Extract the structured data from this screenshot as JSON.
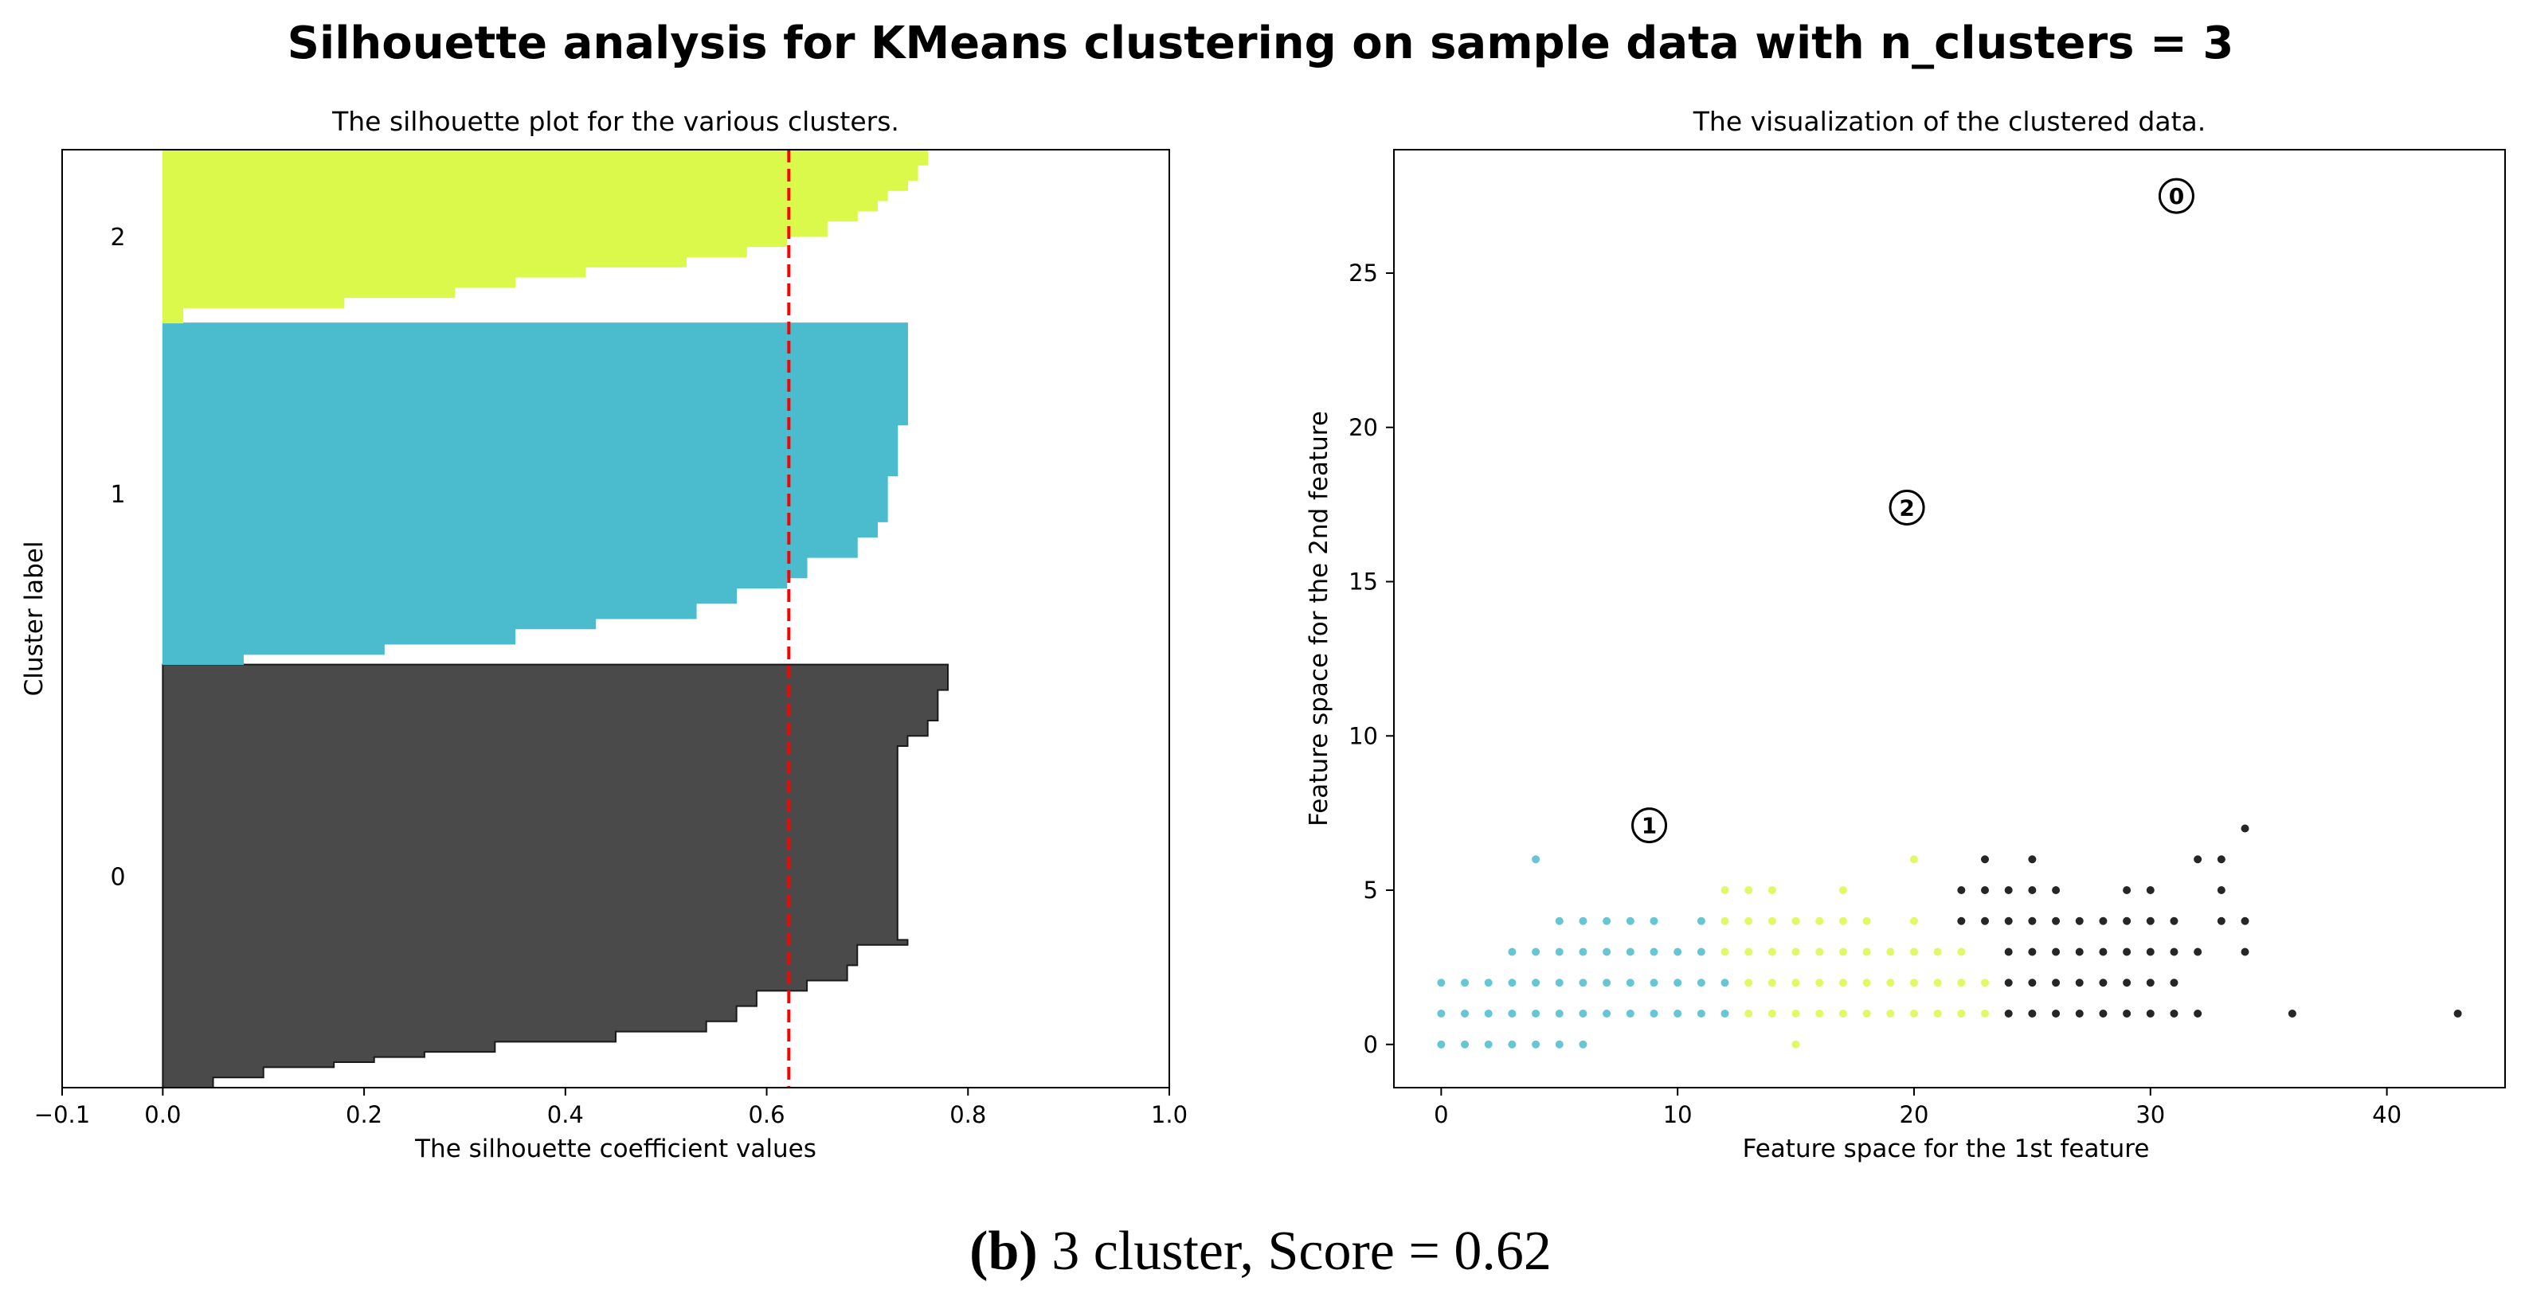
{
  "figure": {
    "suptitle": "Silhouette analysis for KMeans clustering on sample data with n_clusters = 3",
    "caption_label": "(b)",
    "caption_text": " 3 cluster, Score = 0.62",
    "colors": {
      "cluster_0": "#4a4a4a",
      "cluster_1": "#4bbccd",
      "cluster_2": "#dbf94a",
      "avg_line": "#ff0000"
    }
  },
  "chart_data": [
    {
      "type": "area",
      "orientation": "horizontal",
      "title": "The silhouette plot for the various clusters.",
      "xlabel": "The silhouette coefficient values",
      "ylabel": "Cluster label",
      "xlim": [
        -0.1,
        1.0
      ],
      "xticks": [
        -0.1,
        0.0,
        0.2,
        0.4,
        0.6,
        0.8,
        1.0
      ],
      "xtick_labels": [
        "−0.1",
        "0.0",
        "0.2",
        "0.4",
        "0.6",
        "0.8",
        "1.0"
      ],
      "ylim": [
        0,
        184
      ],
      "average_score": 0.622,
      "clusters": [
        {
          "label": "0",
          "y_range": [
            0,
            83
          ],
          "color": "#4a4a4a",
          "profile": [
            [
              0,
              0.05
            ],
            [
              2,
              0.1
            ],
            [
              4,
              0.17
            ],
            [
              5,
              0.21
            ],
            [
              6,
              0.26
            ],
            [
              7,
              0.33
            ],
            [
              9,
              0.45
            ],
            [
              11,
              0.54
            ],
            [
              13,
              0.57
            ],
            [
              16,
              0.59
            ],
            [
              19,
              0.64
            ],
            [
              21,
              0.68
            ],
            [
              24,
              0.69
            ],
            [
              28,
              0.74
            ],
            [
              29,
              0.73
            ],
            [
              54,
              0.73
            ],
            [
              67,
              0.74
            ],
            [
              69,
              0.76
            ],
            [
              72,
              0.77
            ],
            [
              75,
              0.77
            ],
            [
              78,
              0.78
            ],
            [
              83,
              0.78
            ]
          ]
        },
        {
          "label": "1",
          "y_range": [
            83,
            150
          ],
          "color": "#4bbccd",
          "profile": [
            [
              83,
              0.08
            ],
            [
              85,
              0.22
            ],
            [
              87,
              0.35
            ],
            [
              90,
              0.43
            ],
            [
              92,
              0.53
            ],
            [
              95,
              0.57
            ],
            [
              98,
              0.62
            ],
            [
              100,
              0.64
            ],
            [
              104,
              0.69
            ],
            [
              108,
              0.71
            ],
            [
              111,
              0.72
            ],
            [
              113,
              0.72
            ],
            [
              116,
              0.72
            ],
            [
              120,
              0.73
            ],
            [
              125,
              0.73
            ],
            [
              130,
              0.74
            ],
            [
              150,
              0.74
            ]
          ]
        },
        {
          "label": "2",
          "y_range": [
            150,
            184
          ],
          "color": "#dbf94a",
          "profile": [
            [
              150,
              0.02
            ],
            [
              153,
              0.18
            ],
            [
              155,
              0.29
            ],
            [
              157,
              0.35
            ],
            [
              159,
              0.42
            ],
            [
              161,
              0.52
            ],
            [
              163,
              0.58
            ],
            [
              165,
              0.62
            ],
            [
              167,
              0.66
            ],
            [
              170,
              0.69
            ],
            [
              172,
              0.71
            ],
            [
              174,
              0.72
            ],
            [
              176,
              0.74
            ],
            [
              178,
              0.75
            ],
            [
              181,
              0.76
            ],
            [
              184,
              0.76
            ]
          ]
        }
      ]
    },
    {
      "type": "scatter",
      "title": "The visualization of the clustered data.",
      "xlabel": "Feature space for the 1st feature",
      "ylabel": "Feature space for the 2nd feature",
      "xlim": [
        -2,
        45
      ],
      "ylim": [
        -1.4,
        29
      ],
      "xticks": [
        0,
        10,
        20,
        30,
        40
      ],
      "yticks": [
        0,
        5,
        10,
        15,
        20,
        25
      ],
      "series": [
        {
          "name": "cluster 1",
          "color": "#4bbccd",
          "points": [
            [
              0,
              0
            ],
            [
              1,
              0
            ],
            [
              2,
              0
            ],
            [
              3,
              0
            ],
            [
              4,
              0
            ],
            [
              5,
              0
            ],
            [
              6,
              0
            ],
            [
              0,
              1
            ],
            [
              1,
              1
            ],
            [
              2,
              1
            ],
            [
              3,
              1
            ],
            [
              4,
              1
            ],
            [
              5,
              1
            ],
            [
              6,
              1
            ],
            [
              7,
              1
            ],
            [
              8,
              1
            ],
            [
              9,
              1
            ],
            [
              10,
              1
            ],
            [
              11,
              1
            ],
            [
              12,
              1
            ],
            [
              0,
              2
            ],
            [
              1,
              2
            ],
            [
              2,
              2
            ],
            [
              3,
              2
            ],
            [
              4,
              2
            ],
            [
              5,
              2
            ],
            [
              6,
              2
            ],
            [
              7,
              2
            ],
            [
              8,
              2
            ],
            [
              9,
              2
            ],
            [
              10,
              2
            ],
            [
              11,
              2
            ],
            [
              12,
              2
            ],
            [
              3,
              3
            ],
            [
              4,
              3
            ],
            [
              5,
              3
            ],
            [
              6,
              3
            ],
            [
              7,
              3
            ],
            [
              8,
              3
            ],
            [
              9,
              3
            ],
            [
              10,
              3
            ],
            [
              11,
              3
            ],
            [
              5,
              4
            ],
            [
              6,
              4
            ],
            [
              7,
              4
            ],
            [
              8,
              4
            ],
            [
              9,
              4
            ],
            [
              11,
              4
            ],
            [
              4,
              6
            ]
          ]
        },
        {
          "name": "cluster 2",
          "color": "#dbf94a",
          "points": [
            [
              13,
              1
            ],
            [
              14,
              1
            ],
            [
              15,
              1
            ],
            [
              16,
              1
            ],
            [
              17,
              1
            ],
            [
              18,
              1
            ],
            [
              19,
              1
            ],
            [
              20,
              1
            ],
            [
              21,
              1
            ],
            [
              22,
              1
            ],
            [
              23,
              1
            ],
            [
              13,
              2
            ],
            [
              14,
              2
            ],
            [
              15,
              2
            ],
            [
              16,
              2
            ],
            [
              17,
              2
            ],
            [
              18,
              2
            ],
            [
              19,
              2
            ],
            [
              20,
              2
            ],
            [
              21,
              2
            ],
            [
              22,
              2
            ],
            [
              23,
              2
            ],
            [
              12,
              3
            ],
            [
              13,
              3
            ],
            [
              14,
              3
            ],
            [
              15,
              3
            ],
            [
              16,
              3
            ],
            [
              17,
              3
            ],
            [
              18,
              3
            ],
            [
              19,
              3
            ],
            [
              20,
              3
            ],
            [
              21,
              3
            ],
            [
              22,
              3
            ],
            [
              12,
              4
            ],
            [
              13,
              4
            ],
            [
              14,
              4
            ],
            [
              15,
              4
            ],
            [
              16,
              4
            ],
            [
              17,
              4
            ],
            [
              18,
              4
            ],
            [
              20,
              4
            ],
            [
              12,
              5
            ],
            [
              13,
              5
            ],
            [
              14,
              5
            ],
            [
              17,
              5
            ],
            [
              20,
              6
            ],
            [
              15,
              0
            ]
          ]
        },
        {
          "name": "cluster 0",
          "color": "#000000",
          "points": [
            [
              24,
              1
            ],
            [
              25,
              1
            ],
            [
              26,
              1
            ],
            [
              27,
              1
            ],
            [
              28,
              1
            ],
            [
              29,
              1
            ],
            [
              30,
              1
            ],
            [
              31,
              1
            ],
            [
              32,
              1
            ],
            [
              36,
              1
            ],
            [
              43,
              1
            ],
            [
              24,
              2
            ],
            [
              25,
              2
            ],
            [
              26,
              2
            ],
            [
              27,
              2
            ],
            [
              28,
              2
            ],
            [
              29,
              2
            ],
            [
              30,
              2
            ],
            [
              31,
              2
            ],
            [
              24,
              3
            ],
            [
              25,
              3
            ],
            [
              26,
              3
            ],
            [
              27,
              3
            ],
            [
              28,
              3
            ],
            [
              29,
              3
            ],
            [
              30,
              3
            ],
            [
              31,
              3
            ],
            [
              32,
              3
            ],
            [
              34,
              3
            ],
            [
              22,
              4
            ],
            [
              23,
              4
            ],
            [
              24,
              4
            ],
            [
              25,
              4
            ],
            [
              26,
              4
            ],
            [
              27,
              4
            ],
            [
              28,
              4
            ],
            [
              29,
              4
            ],
            [
              30,
              4
            ],
            [
              31,
              4
            ],
            [
              33,
              4
            ],
            [
              34,
              4
            ],
            [
              22,
              5
            ],
            [
              23,
              5
            ],
            [
              24,
              5
            ],
            [
              25,
              5
            ],
            [
              26,
              5
            ],
            [
              29,
              5
            ],
            [
              30,
              5
            ],
            [
              33,
              5
            ],
            [
              23,
              6
            ],
            [
              25,
              6
            ],
            [
              32,
              6
            ],
            [
              33,
              6
            ],
            [
              34,
              7
            ]
          ]
        }
      ],
      "centers": [
        {
          "label": "0",
          "x": 31.1,
          "y": 27.5
        },
        {
          "label": "1",
          "x": 8.8,
          "y": 7.1
        },
        {
          "label": "2",
          "x": 19.7,
          "y": 17.4
        }
      ]
    }
  ]
}
